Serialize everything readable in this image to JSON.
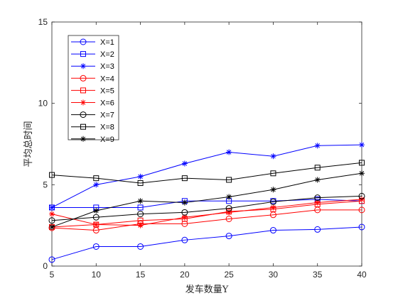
{
  "chart_data": {
    "type": "line",
    "title": "",
    "xlabel": "发车数量Y",
    "ylabel": "平均总时间",
    "xlim": [
      5,
      40
    ],
    "ylim": [
      0,
      15
    ],
    "x": [
      5,
      10,
      15,
      20,
      25,
      30,
      35,
      40
    ],
    "xticks": [
      "5",
      "10",
      "15",
      "20",
      "25",
      "30",
      "35",
      "40"
    ],
    "yticks": [
      "0",
      "5",
      "10",
      "15"
    ],
    "legend_location": "top-left",
    "grid": false,
    "series": [
      {
        "name": "X=1",
        "color": "#0000ff",
        "marker": "circle",
        "values": [
          0.4,
          1.2,
          1.2,
          1.6,
          1.85,
          2.2,
          2.25,
          2.4
        ]
      },
      {
        "name": "X=2",
        "color": "#0000ff",
        "marker": "square",
        "values": [
          3.6,
          3.6,
          3.6,
          4.0,
          4.0,
          4.0,
          4.1,
          4.0
        ]
      },
      {
        "name": "X=3",
        "color": "#0000ff",
        "marker": "asterisk",
        "values": [
          3.6,
          5.0,
          5.5,
          6.3,
          7.0,
          6.75,
          7.4,
          7.45
        ]
      },
      {
        "name": "X=4",
        "color": "#ff0000",
        "marker": "circle",
        "values": [
          2.35,
          2.2,
          2.6,
          2.6,
          2.9,
          3.15,
          3.45,
          3.45
        ]
      },
      {
        "name": "X=5",
        "color": "#ff0000",
        "marker": "square",
        "values": [
          2.4,
          2.55,
          2.8,
          2.9,
          3.35,
          3.5,
          3.8,
          4.0
        ]
      },
      {
        "name": "X=6",
        "color": "#ff0000",
        "marker": "asterisk",
        "values": [
          3.2,
          2.55,
          2.5,
          3.0,
          3.3,
          3.6,
          3.9,
          4.1
        ]
      },
      {
        "name": "X=7",
        "color": "#000000",
        "marker": "circle",
        "values": [
          2.8,
          3.0,
          3.2,
          3.3,
          3.55,
          3.95,
          4.2,
          4.3
        ]
      },
      {
        "name": "X=8",
        "color": "#000000",
        "marker": "square",
        "values": [
          5.6,
          5.4,
          5.1,
          5.4,
          5.3,
          5.7,
          6.05,
          6.35
        ]
      },
      {
        "name": "X=9",
        "color": "#000000",
        "marker": "asterisk",
        "values": [
          2.4,
          3.4,
          4.0,
          3.9,
          4.25,
          4.7,
          5.3,
          5.7
        ]
      }
    ]
  }
}
